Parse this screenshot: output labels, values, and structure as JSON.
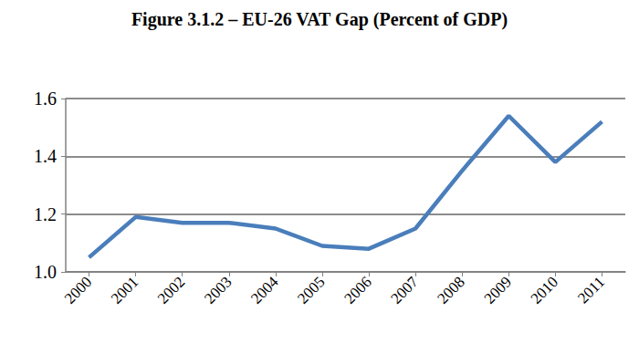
{
  "chart_data": {
    "type": "line",
    "title": "Figure 3.1.2 – EU-26 VAT Gap (Percent of GDP)",
    "categories": [
      "2000",
      "2001",
      "2002",
      "2003",
      "2004",
      "2005",
      "2006",
      "2007",
      "2008",
      "2009",
      "2010",
      "2011"
    ],
    "values": [
      1.05,
      1.19,
      1.17,
      1.17,
      1.15,
      1.09,
      1.08,
      1.15,
      1.35,
      1.54,
      1.38,
      1.52
    ],
    "color": "#4a7ebb",
    "ylim": [
      1.0,
      1.6
    ],
    "yticks": [
      {
        "value": 1.0,
        "label": "1.0"
      },
      1.2,
      1.4,
      1.6
    ],
    "grid": true
  }
}
